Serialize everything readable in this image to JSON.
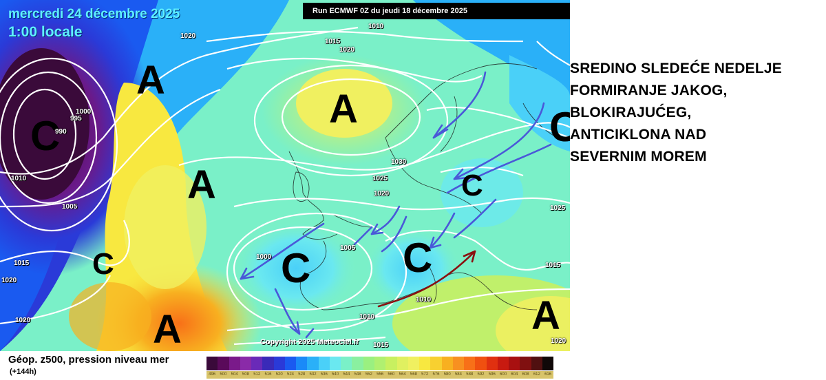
{
  "map": {
    "date": "mercredi 24 décembre 2025",
    "time": "1:00 locale",
    "run_banner": "Run ECMWF 0Z du jeudi 18 décembre 2025",
    "copyright": "Copyright 2025 Meteociel.fr",
    "pressure_centers": [
      {
        "label": "A",
        "kind": "high"
      },
      {
        "label": "A",
        "kind": "high"
      },
      {
        "label": "A",
        "kind": "high"
      },
      {
        "label": "A",
        "kind": "high"
      },
      {
        "label": "A",
        "kind": "high"
      },
      {
        "label": "C",
        "kind": "low"
      },
      {
        "label": "C",
        "kind": "low"
      },
      {
        "label": "C",
        "kind": "low"
      },
      {
        "label": "C",
        "kind": "low"
      },
      {
        "label": "C",
        "kind": "low"
      },
      {
        "label": "C",
        "kind": "low"
      }
    ],
    "isobar_labels": [
      "1010",
      "1015",
      "1020",
      "1020",
      "1000",
      "995",
      "990",
      "1010",
      "1005",
      "1015",
      "1020",
      "1020",
      "1030",
      "1025",
      "1020",
      "1005",
      "1000",
      "1015",
      "1010",
      "1010",
      "1025",
      "1020",
      "1015"
    ],
    "colors": {
      "arrow_blue": "#4a58d8",
      "arrow_red": "#8a1010",
      "isobar": "#ffffff"
    }
  },
  "legend": {
    "title": "Géop. z500, pression niveau mer",
    "subtitle": "(+144h)",
    "scale_values": [
      "496",
      "500",
      "504",
      "508",
      "512",
      "516",
      "520",
      "524",
      "528",
      "532",
      "536",
      "540",
      "544",
      "548",
      "552",
      "556",
      "560",
      "564",
      "568",
      "572",
      "576",
      "580",
      "584",
      "588",
      "592",
      "596",
      "600",
      "604",
      "608",
      "612",
      "616"
    ],
    "scale_colors": [
      "#3a0a3a",
      "#5a0a5a",
      "#7a1a8a",
      "#8a2aa8",
      "#6a2ab8",
      "#3a2ab8",
      "#2a3ad8",
      "#1a5af0",
      "#1a8af8",
      "#2ab0f8",
      "#4ad0f8",
      "#6ae8f0",
      "#7af0c8",
      "#8af0a0",
      "#9af080",
      "#b0f070",
      "#c8f060",
      "#e0f060",
      "#f0f060",
      "#f8e840",
      "#f8d030",
      "#f8b020",
      "#f89020",
      "#f87018",
      "#f05010",
      "#e03010",
      "#c81a10",
      "#a81010",
      "#801010",
      "#501010",
      "#100808"
    ]
  },
  "annotation": {
    "lines": [
      "SREDINO SLEDEĆE NEDELJE",
      "FORMIRANJE JAKOG,",
      "BLOKIRAJUĆEG,",
      "ANTICIKLONA NAD",
      "SEVERNIM MOREM"
    ]
  }
}
